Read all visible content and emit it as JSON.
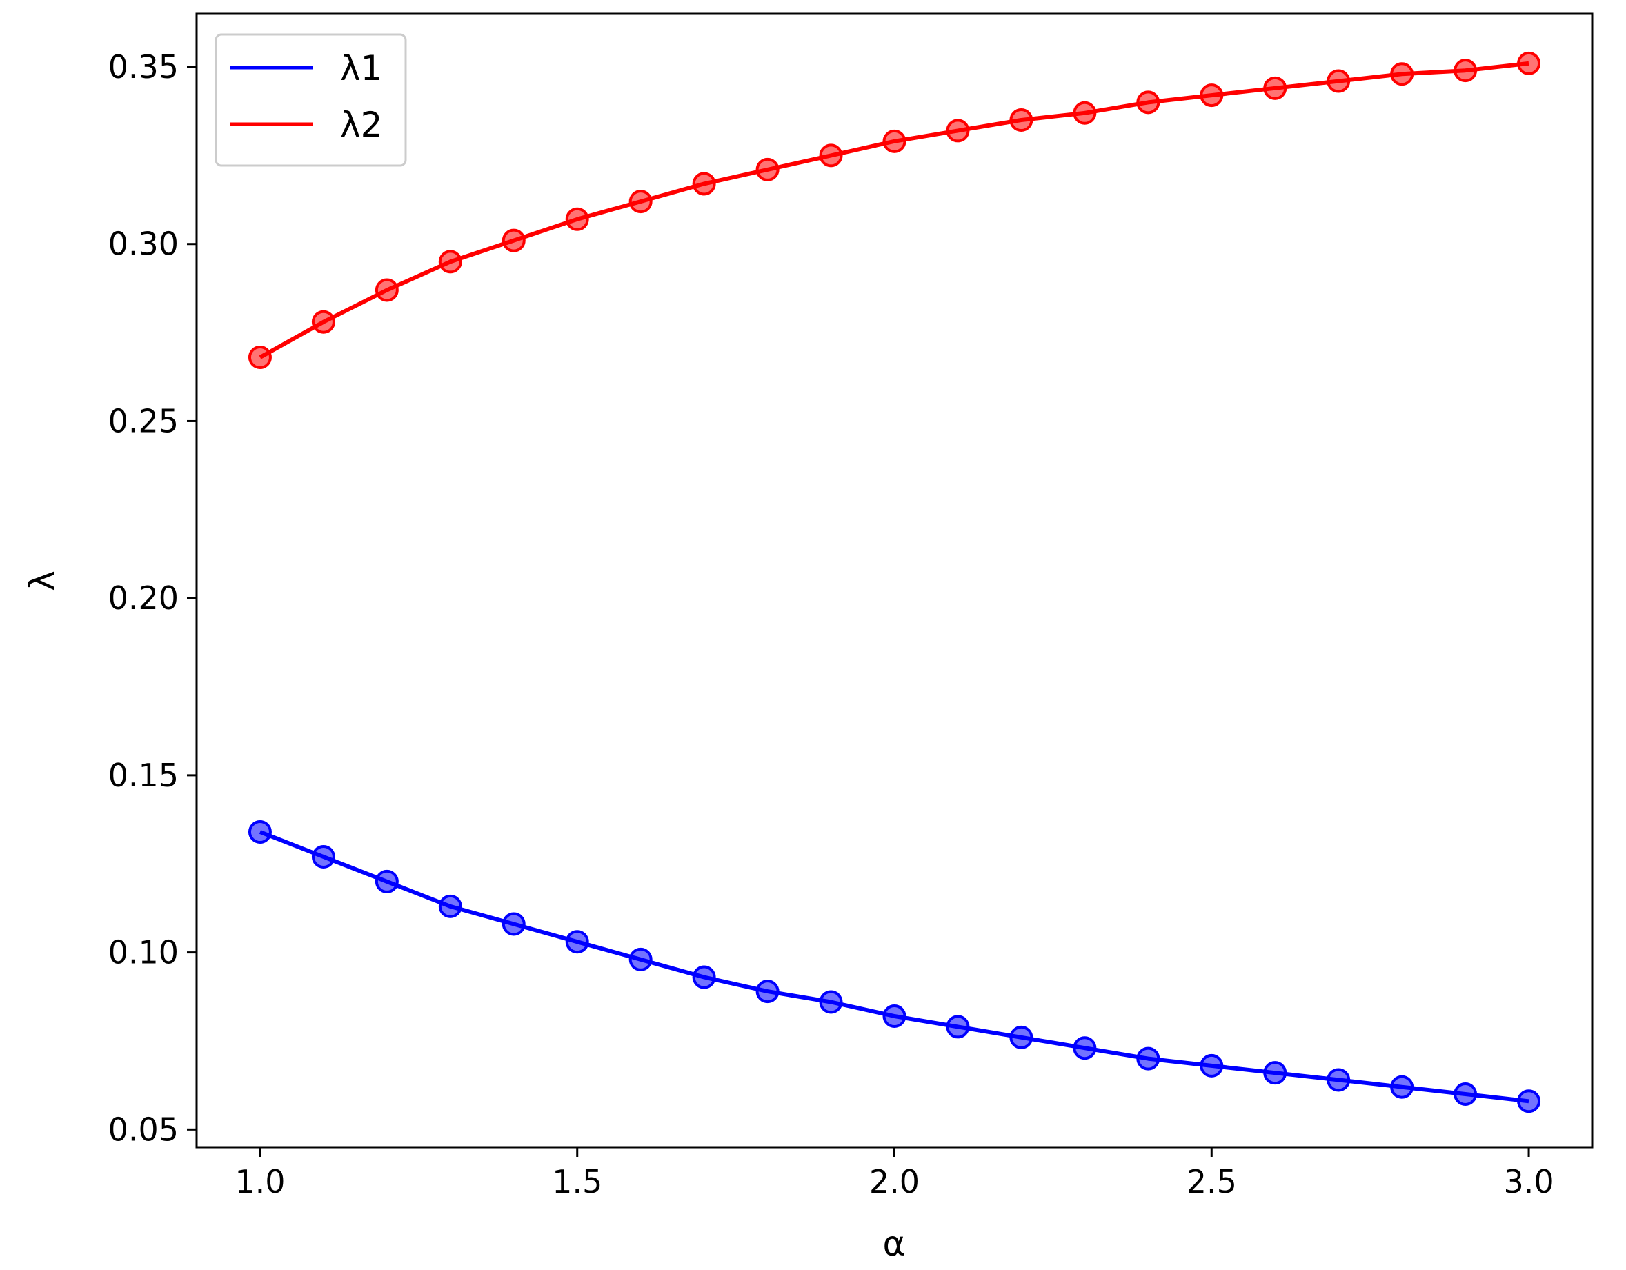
{
  "chart_data": {
    "type": "line",
    "xlabel": "α",
    "ylabel": "λ",
    "xlim": [
      0.9,
      3.1
    ],
    "ylim": [
      0.045,
      0.365
    ],
    "xticks": [
      1.0,
      1.5,
      2.0,
      2.5,
      3.0
    ],
    "xtick_labels": [
      "1.0",
      "1.5",
      "2.0",
      "2.5",
      "3.0"
    ],
    "yticks": [
      0.05,
      0.1,
      0.15,
      0.2,
      0.25,
      0.3,
      0.35
    ],
    "ytick_labels": [
      "0.05",
      "0.10",
      "0.15",
      "0.20",
      "0.25",
      "0.30",
      "0.35"
    ],
    "grid": false,
    "legend_position": "top-left",
    "x": [
      1.0,
      1.1,
      1.2,
      1.3,
      1.4,
      1.5,
      1.6,
      1.7,
      1.8,
      1.9,
      2.0,
      2.1,
      2.2,
      2.3,
      2.4,
      2.5,
      2.6,
      2.7,
      2.8,
      2.9,
      3.0
    ],
    "series": [
      {
        "name": "λ1",
        "color": "#0000ff",
        "markers": true,
        "values": [
          0.134,
          0.127,
          0.12,
          0.113,
          0.108,
          0.103,
          0.098,
          0.093,
          0.089,
          0.086,
          0.082,
          0.079,
          0.076,
          0.073,
          0.07,
          0.068,
          0.066,
          0.064,
          0.062,
          0.06,
          0.058
        ]
      },
      {
        "name": "λ2",
        "color": "#ff0000",
        "markers": true,
        "values": [
          0.268,
          0.278,
          0.287,
          0.295,
          0.301,
          0.307,
          0.312,
          0.317,
          0.321,
          0.325,
          0.329,
          0.332,
          0.335,
          0.337,
          0.34,
          0.342,
          0.344,
          0.346,
          0.348,
          0.349,
          0.351
        ]
      }
    ]
  }
}
